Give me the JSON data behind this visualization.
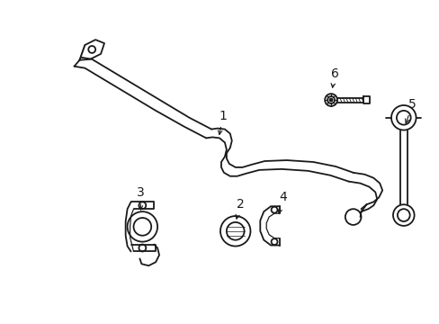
{
  "background_color": "#ffffff",
  "line_color": "#1a1a1a",
  "figsize": [
    4.89,
    3.6
  ],
  "dpi": 100,
  "lw": 1.3,
  "tlw": 0.9
}
